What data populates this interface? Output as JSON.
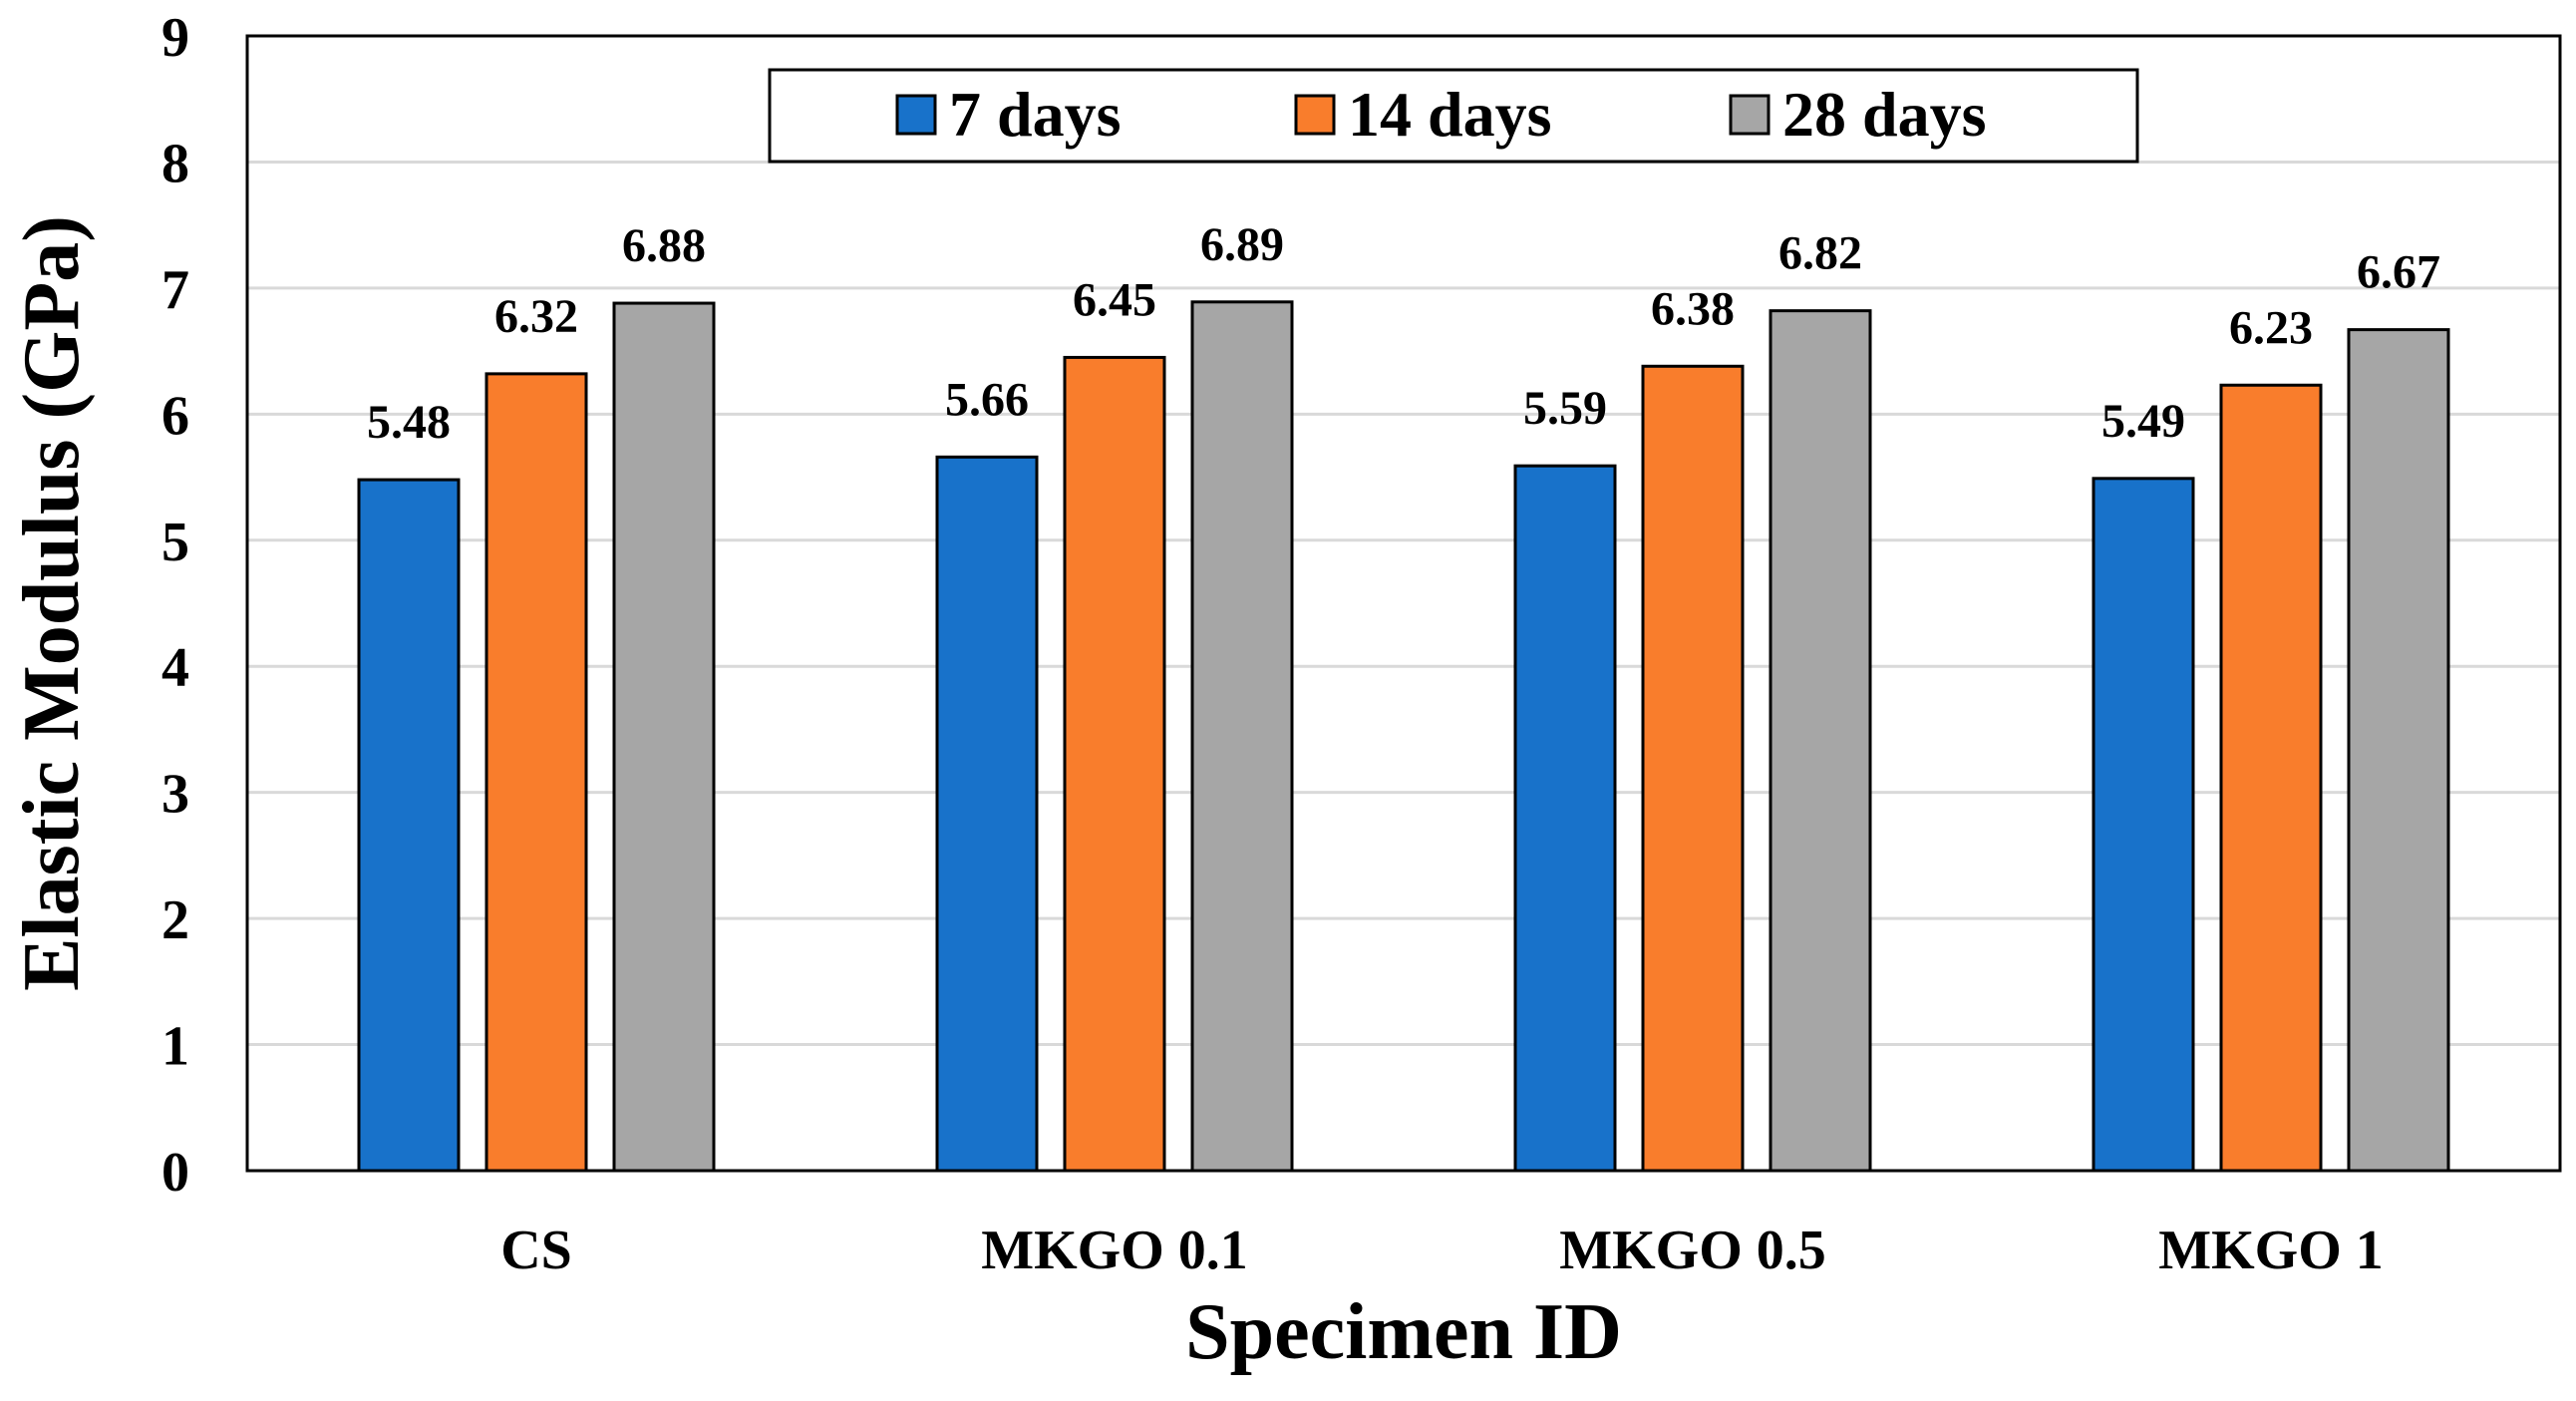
{
  "chart_data": {
    "type": "bar",
    "title": "",
    "xlabel": "Specimen ID",
    "ylabel": "Elastic Modulus (GPa)",
    "ylim": [
      0,
      9
    ],
    "yticks": [
      "0",
      "1",
      "2",
      "3",
      "4",
      "5",
      "6",
      "7",
      "8",
      "9"
    ],
    "grid": true,
    "legend_position": "top-center",
    "categories": [
      "CS",
      "MKGO 0.1",
      "MKGO 0.5",
      "MKGO 1"
    ],
    "series": [
      {
        "name": "7 days",
        "color": "#1872CA",
        "values": [
          5.48,
          5.66,
          5.59,
          5.49
        ],
        "labels": [
          "5.48",
          "5.66",
          "5.59",
          "5.49"
        ]
      },
      {
        "name": "14 days",
        "color": "#F97D2C",
        "values": [
          6.32,
          6.45,
          6.38,
          6.23
        ],
        "labels": [
          "6.32",
          "6.45",
          "6.38",
          "6.23"
        ]
      },
      {
        "name": "28 days",
        "color": "#A6A6A6",
        "values": [
          6.88,
          6.89,
          6.82,
          6.67
        ],
        "labels": [
          "6.88",
          "6.89",
          "6.82",
          "6.67"
        ]
      }
    ]
  }
}
